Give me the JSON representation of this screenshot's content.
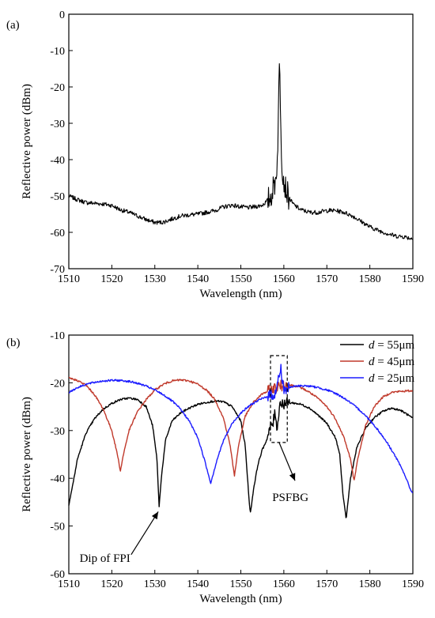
{
  "chart_data": [
    {
      "panel_label": "(a)",
      "type": "line",
      "xlabel": "Wavelength (nm)",
      "ylabel": "Reflective power (dBm)",
      "xlim": [
        1510,
        1590
      ],
      "ylim": [
        -70,
        0
      ],
      "xticks": [
        1510,
        1520,
        1530,
        1540,
        1550,
        1560,
        1570,
        1580,
        1590
      ],
      "yticks": [
        0,
        -10,
        -20,
        -30,
        -40,
        -50,
        -60,
        -70
      ],
      "grid": false,
      "series": [
        {
          "color": "#000000",
          "x": [
            1510,
            1512,
            1514,
            1516,
            1518,
            1520,
            1522,
            1524,
            1526,
            1528,
            1530,
            1532,
            1534,
            1536,
            1538,
            1540,
            1542,
            1544,
            1546,
            1548,
            1550,
            1552,
            1554,
            1555,
            1556,
            1557,
            1558,
            1558.5,
            1559,
            1559.5,
            1560,
            1561,
            1562,
            1563,
            1564,
            1566,
            1568,
            1570,
            1572,
            1574,
            1576,
            1578,
            1580,
            1582,
            1584,
            1586,
            1588,
            1590
          ],
          "y": [
            -50,
            -51,
            -51.8,
            -52,
            -52.2,
            -52.6,
            -53.8,
            -54.5,
            -55.5,
            -56.5,
            -57.3,
            -57.2,
            -56.3,
            -55.5,
            -55.2,
            -55,
            -54.5,
            -54,
            -53,
            -52.5,
            -53,
            -53.2,
            -52.8,
            -52.5,
            -51.5,
            -50,
            -46,
            -40,
            -12.5,
            -40,
            -46,
            -50,
            -52,
            -53,
            -53.8,
            -54.5,
            -54.5,
            -54,
            -54,
            -54.5,
            -55.5,
            -57,
            -58.5,
            -59.5,
            -60.3,
            -61,
            -61.2,
            -61.8
          ]
        }
      ]
    },
    {
      "panel_label": "(b)",
      "type": "line",
      "xlabel": "Wavelength (nm)",
      "ylabel": "Reflective power (dBm)",
      "xlim": [
        1510,
        1590
      ],
      "ylim": [
        -60,
        -10
      ],
      "xticks": [
        1510,
        1520,
        1530,
        1540,
        1550,
        1560,
        1570,
        1580,
        1590
      ],
      "yticks": [
        -10,
        -20,
        -30,
        -40,
        -50,
        -60
      ],
      "grid": false,
      "legend_position": "top-right",
      "series": [
        {
          "name": "d = 55μm",
          "name_italic": "d",
          "name_rest": " = 55μm",
          "color": "#000000",
          "x": [
            1510,
            1511,
            1512,
            1514,
            1516,
            1518,
            1520,
            1522,
            1524,
            1526,
            1528,
            1529.5,
            1530.5,
            1531,
            1531.5,
            1532.5,
            1534,
            1536,
            1538,
            1540,
            1542,
            1544,
            1546,
            1548,
            1550,
            1551,
            1551.8,
            1552.2,
            1553,
            1554,
            1555,
            1556,
            1557,
            1557.5,
            1558,
            1558.5,
            1559,
            1559.5,
            1560,
            1562,
            1564,
            1566,
            1568,
            1570,
            1572,
            1573,
            1573.8,
            1574.5,
            1575.5,
            1577,
            1579,
            1581,
            1583,
            1585,
            1587,
            1588.5,
            1590
          ],
          "y": [
            -45.5,
            -41,
            -36,
            -30.5,
            -27.5,
            -25.5,
            -24.3,
            -23.5,
            -23.2,
            -23.5,
            -25,
            -29,
            -36,
            -46,
            -40,
            -32,
            -28,
            -26.3,
            -25.3,
            -24.5,
            -24.1,
            -23.8,
            -24,
            -25,
            -28,
            -33,
            -43,
            -47.5,
            -42,
            -37,
            -34,
            -32,
            -29,
            -28.5,
            -26,
            -30,
            -24,
            -24.5,
            -24.3,
            -24.2,
            -24.5,
            -25.3,
            -26.8,
            -28.5,
            -31.5,
            -35,
            -44,
            -48.5,
            -40,
            -33.5,
            -29.5,
            -27.3,
            -26,
            -25.3,
            -25.7,
            -26.5,
            -27.5
          ]
        },
        {
          "name": "d = 45μm",
          "name_italic": "d",
          "name_rest": " = 45μm",
          "color": "#c0392b",
          "x": [
            1510,
            1512,
            1514,
            1516,
            1518,
            1520,
            1521.3,
            1522,
            1522.7,
            1524,
            1526,
            1528,
            1530,
            1532,
            1534,
            1536,
            1538,
            1540,
            1542,
            1544,
            1546,
            1547.5,
            1548.5,
            1549.5,
            1551,
            1553,
            1555,
            1557,
            1558,
            1559,
            1560,
            1562,
            1564,
            1566,
            1568,
            1570,
            1572,
            1574,
            1575.5,
            1576.3,
            1577.2,
            1579,
            1581,
            1583,
            1585,
            1587,
            1589,
            1590
          ],
          "y": [
            -19,
            -19.5,
            -20.5,
            -22.5,
            -25.5,
            -30,
            -35,
            -38.5,
            -35,
            -30,
            -26,
            -23.5,
            -21.5,
            -20.3,
            -19.6,
            -19.4,
            -19.6,
            -20.3,
            -21.5,
            -23.5,
            -27.5,
            -33,
            -39.5,
            -33,
            -27,
            -24,
            -22.3,
            -21.5,
            -21,
            -20.7,
            -20.5,
            -20.5,
            -21,
            -22,
            -23.3,
            -25,
            -27.5,
            -31.5,
            -36,
            -40.5,
            -36,
            -29,
            -25,
            -23,
            -22,
            -21.8,
            -21.7,
            -21.7
          ]
        },
        {
          "name": "d = 25μm",
          "name_italic": "d",
          "name_rest": " = 25μm",
          "color": "#1c1cff",
          "x": [
            1510,
            1512,
            1514,
            1516,
            1518,
            1520,
            1522,
            1524,
            1526,
            1528,
            1530,
            1532,
            1534,
            1536,
            1538,
            1540,
            1541.5,
            1543,
            1544.5,
            1546,
            1548,
            1550,
            1552,
            1554,
            1556,
            1558,
            1558.8,
            1559.3,
            1560,
            1562,
            1564,
            1566,
            1568,
            1570,
            1572,
            1574,
            1576,
            1578,
            1580,
            1582,
            1584,
            1586,
            1588,
            1589.5,
            1590
          ],
          "y": [
            -22,
            -21,
            -20.3,
            -19.9,
            -19.6,
            -19.5,
            -19.5,
            -19.7,
            -20.1,
            -20.7,
            -21.5,
            -22.5,
            -23.8,
            -25.5,
            -28,
            -31.5,
            -36,
            -41,
            -36,
            -32,
            -28.5,
            -26.3,
            -24.8,
            -23.7,
            -22.9,
            -22.3,
            -19,
            -17,
            -21.5,
            -20.8,
            -20.6,
            -20.7,
            -21,
            -21.5,
            -22.2,
            -23.2,
            -24.5,
            -26,
            -27.8,
            -30,
            -32.5,
            -35.5,
            -39,
            -42.5,
            -43
          ]
        }
      ],
      "annotations": [
        {
          "text": "PSFBG",
          "target_x": 1558.9,
          "target_y": -31
        },
        {
          "text": "Dip of FPI",
          "target_x": 1531,
          "target_y": -47
        }
      ]
    }
  ]
}
